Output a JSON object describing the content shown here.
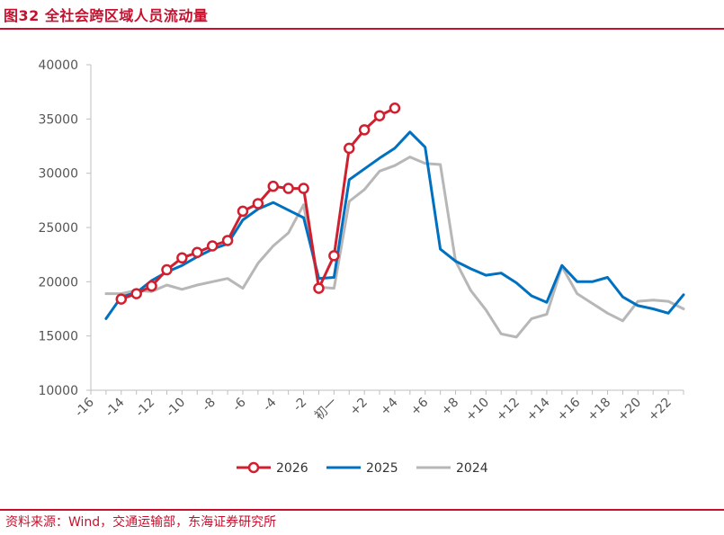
{
  "header": {
    "title": "图32 全社会跨区域人员流动量"
  },
  "footer": {
    "source": "资料来源：Wind，交通运输部，东海证券研究所"
  },
  "colors": {
    "accent": "#c8102e",
    "s2026": "#d0202f",
    "s2025": "#0070c0",
    "s2024": "#b7b7b7",
    "axis": "#bfbfbf"
  },
  "chart_data": {
    "type": "line",
    "title": "全社会跨区域人员流动量",
    "xlabel": "",
    "ylabel": "",
    "ylim": [
      10000,
      40000
    ],
    "yticks": [
      10000,
      15000,
      20000,
      25000,
      30000,
      35000,
      40000
    ],
    "xlim": [
      -16,
      23
    ],
    "xticks": [
      {
        "x": -16,
        "label": "-16"
      },
      {
        "x": -14,
        "label": "-14"
      },
      {
        "x": -12,
        "label": "-12"
      },
      {
        "x": -10,
        "label": "-10"
      },
      {
        "x": -8,
        "label": "-8"
      },
      {
        "x": -6,
        "label": "-6"
      },
      {
        "x": -4,
        "label": "-4"
      },
      {
        "x": -2,
        "label": "-2"
      },
      {
        "x": 0,
        "label": "初一"
      },
      {
        "x": 2,
        "label": "+2"
      },
      {
        "x": 4,
        "label": "+4"
      },
      {
        "x": 6,
        "label": "+6"
      },
      {
        "x": 8,
        "label": "+8"
      },
      {
        "x": 10,
        "label": "+10"
      },
      {
        "x": 12,
        "label": "+12"
      },
      {
        "x": 14,
        "label": "+14"
      },
      {
        "x": 16,
        "label": "+16"
      },
      {
        "x": 18,
        "label": "+18"
      },
      {
        "x": 20,
        "label": "+20"
      },
      {
        "x": 22,
        "label": "+22"
      }
    ],
    "legend": "bottom",
    "series": [
      {
        "name": "2026",
        "marker": "circle",
        "x": [
          -14,
          -13,
          -12,
          -11,
          -10,
          -9,
          -8,
          -7,
          -6,
          -5,
          -4,
          -3,
          -2,
          -1,
          0,
          1,
          2,
          3,
          4
        ],
        "values": [
          18400,
          18900,
          19600,
          21100,
          22200,
          22700,
          23300,
          23800,
          26500,
          27200,
          28800,
          28600,
          28600,
          19400,
          22400,
          32300,
          34000,
          35300,
          36000
        ]
      },
      {
        "name": "2025",
        "marker": "none",
        "x": [
          -15,
          -14,
          -13,
          -12,
          -11,
          -10,
          -9,
          -8,
          -7,
          -6,
          -5,
          -4,
          -3,
          -2,
          -1,
          0,
          1,
          2,
          3,
          4,
          5,
          6,
          7,
          8,
          9,
          10,
          11,
          12,
          13,
          14,
          15,
          16,
          17,
          18,
          19,
          20,
          21,
          22,
          23
        ],
        "values": [
          16600,
          18600,
          19000,
          20100,
          20900,
          21500,
          22300,
          23000,
          23500,
          25700,
          26700,
          27300,
          26600,
          25900,
          20300,
          20400,
          29400,
          30400,
          31400,
          32300,
          33800,
          32400,
          23000,
          21900,
          21200,
          20600,
          20800,
          19900,
          18700,
          18100,
          21500,
          20000,
          20000,
          20400,
          18600,
          17800,
          17500,
          17100,
          18800
        ]
      },
      {
        "name": "2024",
        "marker": "none",
        "x": [
          -15,
          -14,
          -13,
          -12,
          -11,
          -10,
          -9,
          -8,
          -7,
          -6,
          -5,
          -4,
          -3,
          -2,
          -1,
          0,
          1,
          2,
          3,
          4,
          5,
          6,
          7,
          8,
          9,
          10,
          11,
          12,
          13,
          14,
          15,
          16,
          17,
          18,
          19,
          20,
          21,
          22,
          23
        ],
        "values": [
          18900,
          18900,
          19200,
          19100,
          19700,
          19300,
          19700,
          20000,
          20300,
          19400,
          21700,
          23300,
          24500,
          27100,
          19500,
          19400,
          27400,
          28500,
          30200,
          30700,
          31500,
          30900,
          30800,
          21900,
          19200,
          17400,
          15200,
          14900,
          16600,
          17000,
          21400,
          18900,
          18000,
          17100,
          16400,
          18200,
          18300,
          18200,
          17500
        ]
      }
    ]
  }
}
